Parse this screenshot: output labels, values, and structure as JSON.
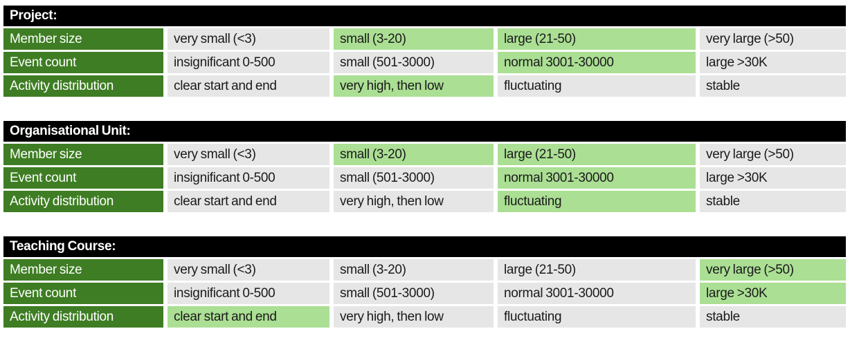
{
  "colors": {
    "page_bg": "#ffffff",
    "header_bg": "#000000",
    "header_text": "#ffffff",
    "label_bg": "#3e7d23",
    "label_text": "#ffffff",
    "cell_bg": "#e7e6e6",
    "highlight_bg": "#abdf94",
    "cell_text": "#1a1a1a"
  },
  "tables": [
    {
      "title": "Project:",
      "rows": [
        {
          "label": "Member size",
          "cells": [
            {
              "text": "very small (<3)",
              "highlight": false
            },
            {
              "text": "small (3-20)",
              "highlight": true
            },
            {
              "text": "large (21-50)",
              "highlight": true
            },
            {
              "text": "very large (>50)",
              "highlight": false
            }
          ]
        },
        {
          "label": "Event count",
          "cells": [
            {
              "text": "insignificant 0-500",
              "highlight": false
            },
            {
              "text": "small (501-3000)",
              "highlight": false
            },
            {
              "text": "normal 3001-30000",
              "highlight": true
            },
            {
              "text": "large >30K",
              "highlight": false
            }
          ]
        },
        {
          "label": "Activity distribution",
          "cells": [
            {
              "text": "clear start and end",
              "highlight": false
            },
            {
              "text": "very high, then low",
              "highlight": true
            },
            {
              "text": "fluctuating",
              "highlight": false
            },
            {
              "text": "stable",
              "highlight": false
            }
          ]
        }
      ]
    },
    {
      "title": "Organisational Unit:",
      "rows": [
        {
          "label": "Member size",
          "cells": [
            {
              "text": "very small (<3)",
              "highlight": false
            },
            {
              "text": "small (3-20)",
              "highlight": true
            },
            {
              "text": "large (21-50)",
              "highlight": true
            },
            {
              "text": "very large (>50)",
              "highlight": false
            }
          ]
        },
        {
          "label": "Event count",
          "cells": [
            {
              "text": "insignificant 0-500",
              "highlight": false
            },
            {
              "text": "small (501-3000)",
              "highlight": false
            },
            {
              "text": "normal 3001-30000",
              "highlight": true
            },
            {
              "text": "large >30K",
              "highlight": false
            }
          ]
        },
        {
          "label": "Activity distribution",
          "cells": [
            {
              "text": "clear start and end",
              "highlight": false
            },
            {
              "text": "very high, then low",
              "highlight": false
            },
            {
              "text": "fluctuating",
              "highlight": true
            },
            {
              "text": "stable",
              "highlight": false
            }
          ]
        }
      ]
    },
    {
      "title": "Teaching Course:",
      "rows": [
        {
          "label": "Member size",
          "cells": [
            {
              "text": "very small (<3)",
              "highlight": false
            },
            {
              "text": "small (3-20)",
              "highlight": false
            },
            {
              "text": "large (21-50)",
              "highlight": false
            },
            {
              "text": "very large (>50)",
              "highlight": true
            }
          ]
        },
        {
          "label": "Event count",
          "cells": [
            {
              "text": "insignificant 0-500",
              "highlight": false
            },
            {
              "text": "small (501-3000)",
              "highlight": false
            },
            {
              "text": "normal 3001-30000",
              "highlight": false
            },
            {
              "text": "large >30K",
              "highlight": true
            }
          ]
        },
        {
          "label": "Activity distribution",
          "cells": [
            {
              "text": "clear start and end",
              "highlight": true
            },
            {
              "text": "very high, then low",
              "highlight": false
            },
            {
              "text": "fluctuating",
              "highlight": false
            },
            {
              "text": "stable",
              "highlight": false
            }
          ]
        }
      ]
    }
  ]
}
